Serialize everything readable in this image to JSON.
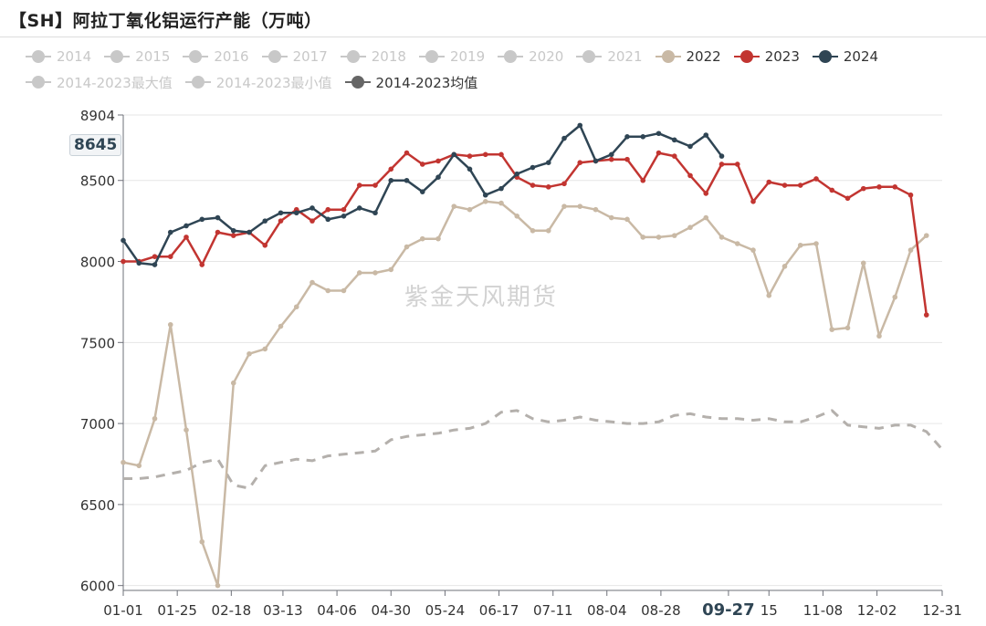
{
  "title": "【SH】阿拉丁氧化铝运行产能（万吨）",
  "watermark": "紫金天风期货",
  "highlight_value": "8645",
  "legend": {
    "row1": [
      {
        "label": "2014",
        "color": "#c8c8c8",
        "active": false
      },
      {
        "label": "2015",
        "color": "#c8c8c8",
        "active": false
      },
      {
        "label": "2016",
        "color": "#c8c8c8",
        "active": false
      },
      {
        "label": "2017",
        "color": "#c8c8c8",
        "active": false
      },
      {
        "label": "2018",
        "color": "#c8c8c8",
        "active": false
      },
      {
        "label": "2019",
        "color": "#c8c8c8",
        "active": false
      },
      {
        "label": "2020",
        "color": "#c8c8c8",
        "active": false
      },
      {
        "label": "2021",
        "color": "#c8c8c8",
        "active": false
      },
      {
        "label": "2022",
        "color": "#c9b9a5",
        "active": true
      },
      {
        "label": "2023",
        "color": "#c23531",
        "active": true
      },
      {
        "label": "2024",
        "color": "#2f4554",
        "active": true
      }
    ],
    "row2": [
      {
        "label": "2014-2023最大值",
        "color": "#c8c8c8",
        "active": false
      },
      {
        "label": "2014-2023最小值",
        "color": "#c8c8c8",
        "active": false
      },
      {
        "label": "2014-2023均值",
        "color": "#666666",
        "active": true
      }
    ]
  },
  "chart_data": {
    "type": "line",
    "title": "【SH】阿拉丁氧化铝运行产能（万吨）",
    "xlabel": "",
    "ylabel": "",
    "ylim": [
      5970,
      8904
    ],
    "yticks": [
      6000,
      6500,
      7000,
      7500,
      8000,
      8500,
      8904
    ],
    "x_range": [
      0,
      52
    ],
    "xticks": [
      {
        "label": "01-01",
        "w": 0
      },
      {
        "label": "01-25",
        "w": 3.43
      },
      {
        "label": "02-18",
        "w": 6.86
      },
      {
        "label": "03-13",
        "w": 10.14
      },
      {
        "label": "04-06",
        "w": 13.57
      },
      {
        "label": "04-30",
        "w": 17.0
      },
      {
        "label": "05-24",
        "w": 20.43
      },
      {
        "label": "06-17",
        "w": 23.86
      },
      {
        "label": "07-11",
        "w": 27.29
      },
      {
        "label": "08-04",
        "w": 30.71
      },
      {
        "label": "08-28",
        "w": 34.14
      },
      {
        "label": "09-27",
        "w": 38.43,
        "bold": true
      },
      {
        "label": "15",
        "w": 41.0
      },
      {
        "label": "11-08",
        "w": 44.43
      },
      {
        "label": "12-02",
        "w": 47.86
      },
      {
        "label": "12-31",
        "w": 52.0
      }
    ],
    "grid": true,
    "series": [
      {
        "name": "2014-2023均值",
        "color": "#b4b0ac",
        "dashed": true,
        "markers": false,
        "x": [
          0,
          1,
          2,
          3,
          4,
          5,
          6,
          7,
          8,
          9,
          10,
          11,
          12,
          13,
          14,
          15,
          16,
          17,
          18,
          19,
          20,
          21,
          22,
          23,
          24,
          25,
          26,
          27,
          28,
          29,
          30,
          31,
          32,
          33,
          34,
          35,
          36,
          37,
          38,
          39,
          40,
          41,
          42,
          43,
          44,
          45,
          46,
          47,
          48,
          49,
          50,
          51,
          52
        ],
        "y": [
          6660,
          6660,
          6670,
          6690,
          6710,
          6760,
          6780,
          6620,
          6600,
          6740,
          6760,
          6780,
          6770,
          6800,
          6810,
          6820,
          6830,
          6900,
          6920,
          6930,
          6940,
          6960,
          6970,
          7000,
          7070,
          7080,
          7030,
          7010,
          7020,
          7040,
          7020,
          7010,
          7000,
          7000,
          7010,
          7050,
          7060,
          7040,
          7030,
          7030,
          7020,
          7030,
          7010,
          7010,
          7040,
          7080,
          6990,
          6980,
          6970,
          6990,
          6990,
          6950,
          6840
        ]
      },
      {
        "name": "2022",
        "color": "#c9b9a5",
        "dashed": false,
        "markers": true,
        "x": [
          0,
          1,
          2,
          3,
          4,
          5,
          6,
          7,
          8,
          9,
          10,
          11,
          12,
          13,
          14,
          15,
          16,
          17,
          18,
          19,
          20,
          21,
          22,
          23,
          24,
          25,
          26,
          27,
          28,
          29,
          30,
          31,
          32,
          33,
          34,
          35,
          36,
          37,
          38,
          39,
          40,
          41,
          42,
          43,
          44,
          45,
          46,
          47,
          48,
          49,
          50,
          51,
          52
        ],
        "y": [
          6760,
          6740,
          7030,
          7610,
          6960,
          6270,
          6000,
          7250,
          7430,
          7460,
          7600,
          7720,
          7870,
          7820,
          7820,
          7930,
          7930,
          7950,
          8090,
          8140,
          8140,
          8340,
          8320,
          8370,
          8360,
          8280,
          8190,
          8190,
          8340,
          8340,
          8320,
          8270,
          8260,
          8150,
          8150,
          8160,
          8210,
          8270,
          8150,
          8110,
          8070,
          7790,
          7970,
          8100,
          8110,
          7580,
          7590,
          7990,
          7540,
          7780,
          8070,
          8160,
          null
        ]
      },
      {
        "name": "2023",
        "color": "#c23531",
        "dashed": false,
        "markers": true,
        "x": [
          0,
          1,
          2,
          3,
          4,
          5,
          6,
          7,
          8,
          9,
          10,
          11,
          12,
          13,
          14,
          15,
          16,
          17,
          18,
          19,
          20,
          21,
          22,
          23,
          24,
          25,
          26,
          27,
          28,
          29,
          30,
          31,
          32,
          33,
          34,
          35,
          36,
          37,
          38,
          39,
          40,
          41,
          42,
          43,
          44,
          45,
          46,
          47,
          48,
          49,
          50,
          51,
          52
        ],
        "y": [
          8000,
          8000,
          8030,
          8030,
          8150,
          7980,
          8180,
          8160,
          8180,
          8100,
          8250,
          8320,
          8250,
          8320,
          8320,
          8470,
          8470,
          8570,
          8670,
          8600,
          8620,
          8660,
          8650,
          8660,
          8660,
          8520,
          8470,
          8460,
          8480,
          8610,
          8620,
          8630,
          8630,
          8500,
          8670,
          8650,
          8530,
          8420,
          8600,
          8600,
          8370,
          8490,
          8470,
          8470,
          8510,
          8440,
          8390,
          8450,
          8460,
          8460,
          8410,
          7670,
          null
        ]
      },
      {
        "name": "2024",
        "color": "#2f4554",
        "dashed": false,
        "markers": true,
        "x": [
          0,
          1,
          2,
          3,
          4,
          5,
          6,
          7,
          8,
          9,
          10,
          11,
          12,
          13,
          14,
          15,
          16,
          17,
          18,
          19,
          20,
          21,
          22,
          23,
          24,
          25,
          26,
          27,
          28,
          29,
          30,
          31,
          32,
          33,
          34,
          35,
          36,
          37,
          38,
          39
        ],
        "y": [
          8130,
          7990,
          7980,
          8180,
          8220,
          8260,
          8270,
          8190,
          8180,
          8250,
          8300,
          8300,
          8330,
          8260,
          8280,
          8330,
          8300,
          8500,
          8500,
          8430,
          8520,
          8660,
          8570,
          8410,
          8450,
          8540,
          8580,
          8610,
          8760,
          8840,
          8620,
          8660,
          8770,
          8770,
          8790,
          8750,
          8710,
          8780,
          8650,
          null
        ]
      }
    ]
  }
}
